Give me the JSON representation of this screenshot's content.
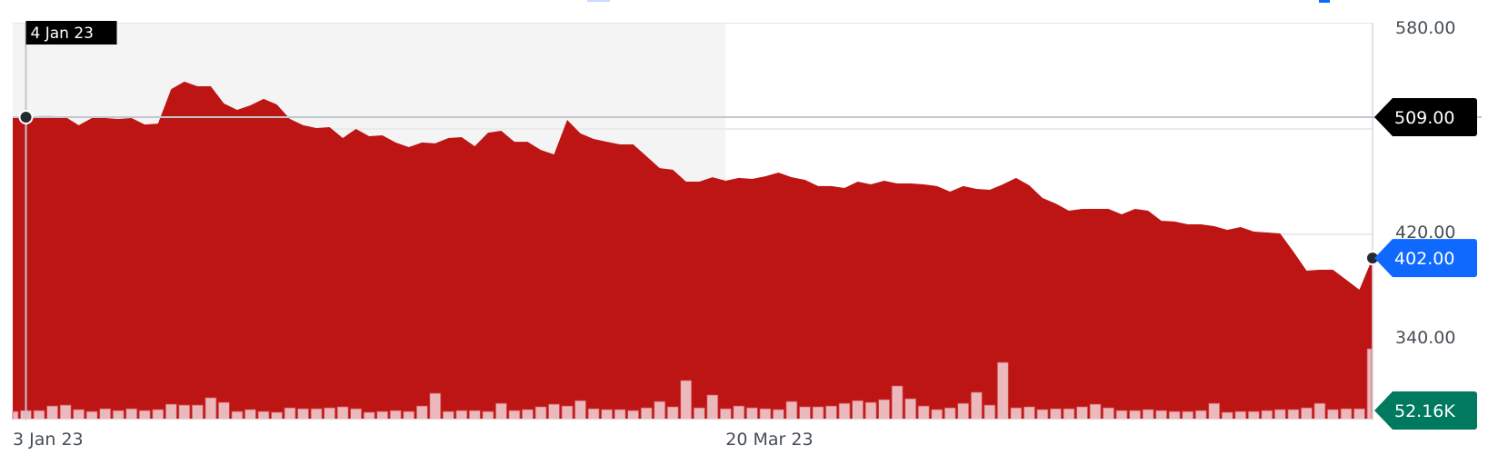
{
  "chart_data": {
    "type": "area",
    "title": "",
    "xlabel": "",
    "ylabel": "",
    "ylim": [
      294,
      580
    ],
    "grid": true,
    "colors": {
      "area": "#bd1414",
      "volume": "#ebb9bb",
      "volume_stroke": "#cf4a4f",
      "shade": "#f4f4f4",
      "hover_tag": "#000000",
      "price_tag": "#0f69ff",
      "volume_tag": "#007a5e",
      "axis_text": "#464e56"
    },
    "y_ticks": [
      {
        "value": 580,
        "label": "580.00"
      },
      {
        "value": 500,
        "label": ""
      },
      {
        "value": 420,
        "label": "420.00"
      },
      {
        "value": 340,
        "label": "340.00"
      }
    ],
    "x_ticks": [
      {
        "index": 0,
        "label": "3 Jan 23"
      },
      {
        "index": 54,
        "label": "20 Mar 23"
      }
    ],
    "shaded_range_index": [
      0,
      54
    ],
    "hover": {
      "index": 1,
      "date_label": "4 Jan 23",
      "value": 509.0,
      "value_label": "509.00"
    },
    "last_price": {
      "value": 402.0,
      "label": "402.00"
    },
    "last_volume": {
      "value": 52.16,
      "label": "52.16K"
    },
    "price": [
      508.3,
      509.0,
      509.7,
      509.7,
      509.0,
      502.8,
      508.3,
      508.3,
      507.6,
      508.3,
      503.4,
      504.1,
      530.3,
      535.9,
      532.4,
      532.4,
      519.3,
      514.5,
      517.9,
      522.8,
      518.6,
      507.6,
      502.8,
      500.7,
      501.4,
      493.1,
      500.0,
      494.5,
      495.2,
      489.7,
      486.2,
      489.7,
      489.0,
      493.1,
      493.8,
      486.9,
      497.2,
      498.6,
      490.3,
      490.3,
      484.1,
      480.7,
      506.9,
      496.6,
      492.4,
      490.3,
      488.3,
      488.3,
      479.3,
      470.3,
      469.0,
      460.0,
      460.0,
      463.4,
      460.7,
      462.8,
      462.1,
      464.1,
      466.9,
      463.4,
      461.4,
      456.6,
      456.6,
      455.2,
      460.0,
      457.9,
      460.7,
      458.6,
      458.6,
      457.9,
      456.6,
      452.4,
      456.6,
      454.5,
      453.8,
      457.9,
      462.8,
      457.2,
      447.6,
      443.4,
      437.9,
      439.3,
      439.3,
      439.3,
      435.2,
      439.3,
      437.9,
      430.3,
      429.7,
      427.6,
      427.6,
      426.2,
      423.4,
      425.5,
      422.1,
      421.4,
      420.7,
      406.9,
      392.4,
      393.1,
      393.1,
      385.5,
      377.9,
      402.0
    ],
    "volume_k": [
      6.0,
      6.7,
      6.7,
      10.0,
      10.7,
      7.4,
      6.0,
      8.0,
      6.7,
      8.0,
      6.7,
      7.4,
      11.4,
      10.7,
      10.7,
      16.1,
      12.7,
      6.0,
      7.4,
      6.0,
      5.4,
      8.7,
      8.0,
      8.0,
      8.7,
      9.4,
      8.0,
      5.4,
      6.0,
      6.7,
      6.0,
      10.0,
      19.4,
      6.0,
      6.7,
      6.7,
      6.0,
      12.0,
      6.7,
      7.4,
      9.4,
      11.4,
      10.0,
      14.0,
      8.0,
      7.4,
      7.4,
      6.7,
      8.7,
      13.4,
      9.4,
      28.8,
      8.7,
      18.1,
      8.0,
      10.0,
      8.7,
      8.0,
      7.4,
      13.4,
      9.4,
      9.4,
      10.0,
      12.0,
      14.0,
      12.7,
      14.7,
      24.8,
      15.4,
      10.0,
      7.4,
      8.7,
      12.0,
      20.1,
      10.7,
      42.1,
      8.7,
      9.4,
      7.4,
      8.0,
      8.0,
      9.4,
      11.4,
      8.7,
      6.7,
      6.7,
      7.4,
      6.7,
      6.0,
      6.0,
      6.7,
      12.0,
      5.4,
      6.0,
      6.0,
      6.7,
      7.4,
      7.4,
      8.7,
      12.0,
      7.4,
      8.0,
      8.0,
      52.16
    ]
  }
}
